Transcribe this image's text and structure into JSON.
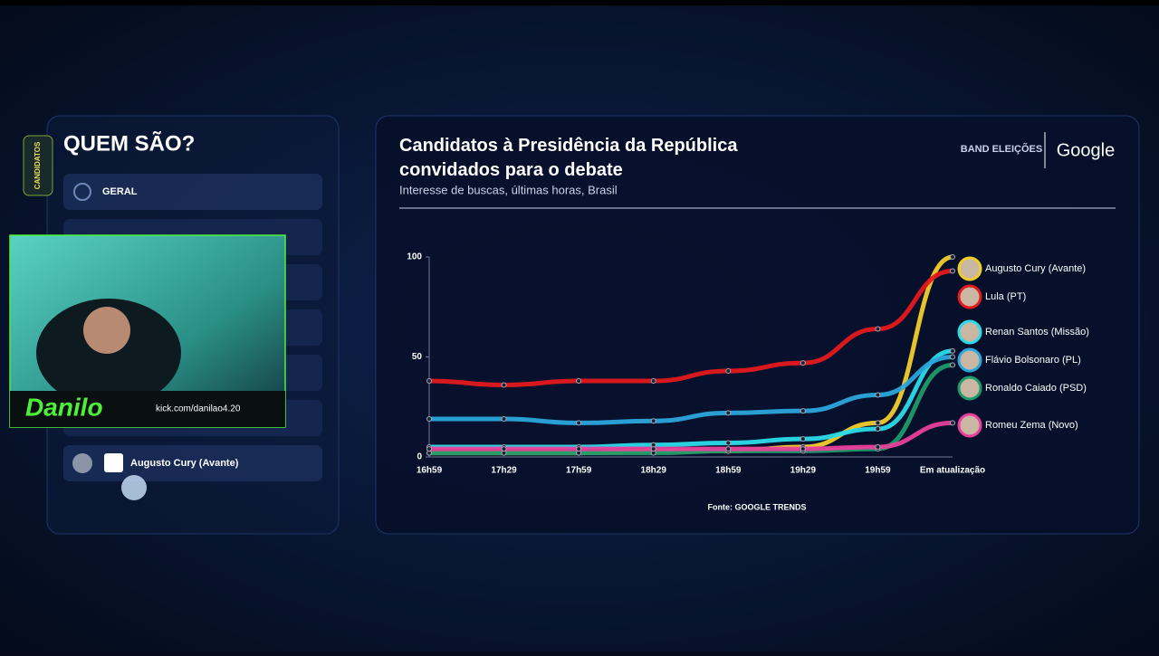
{
  "sidebar": {
    "title": "QUEM SÃO?",
    "tabs": [
      "CANDIDATOS"
    ],
    "items": [
      "GERAL",
      "Augusto Cury (Avante)"
    ]
  },
  "webcam": {
    "logo": "Danilo",
    "link": "kick.com/danilao4.20"
  },
  "brand": {
    "band": "BAND ELEIÇÕES",
    "google": "Google"
  },
  "chart_data": {
    "type": "line",
    "title": "Candidatos à Presidência da República convidados para o debate",
    "subtitle": "Interesse de buscas, últimas horas, Brasil",
    "source": "Fonte: GOOGLE TRENDS",
    "categories": [
      "16h59",
      "17h29",
      "17h59",
      "18h29",
      "18h59",
      "19h29",
      "19h59",
      "Em atualização"
    ],
    "ylim": [
      0,
      100
    ],
    "yticks": [
      0,
      50,
      100
    ],
    "series": [
      {
        "name": "Augusto Cury (Avante)",
        "color": "#f2cd2a",
        "values": [
          2,
          2,
          2,
          3,
          3,
          5,
          17,
          100
        ]
      },
      {
        "name": "Lula (PT)",
        "color": "#e3191c",
        "values": [
          38,
          36,
          38,
          38,
          43,
          47,
          64,
          93
        ]
      },
      {
        "name": "Renan Santos (Missão)",
        "color": "#2bdbe8",
        "values": [
          5,
          5,
          5,
          6,
          7,
          9,
          14,
          53
        ]
      },
      {
        "name": "Flávio Bolsonaro (PL)",
        "color": "#2aa7dc",
        "values": [
          19,
          19,
          17,
          18,
          22,
          23,
          31,
          50
        ]
      },
      {
        "name": "Ronaldo Caiado (PSD)",
        "color": "#1f9a6a",
        "values": [
          2,
          2,
          2,
          2,
          3,
          3,
          4,
          46
        ]
      },
      {
        "name": "Romeu Zema (Novo)",
        "color": "#e8409a",
        "values": [
          4,
          4,
          4,
          4,
          4,
          4,
          5,
          17
        ]
      }
    ]
  }
}
